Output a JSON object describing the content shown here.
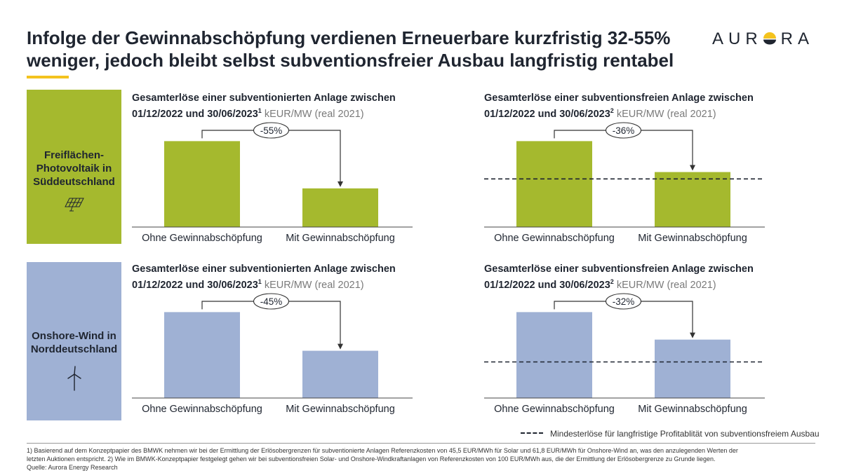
{
  "title": {
    "line1": "Infolge der Gewinnabschöpfung verdienen Erneuerbare kurzfristig 32-55%",
    "line2": "weniger, jedoch bleibt selbst subventionsfreier Ausbau langfristig rentabel"
  },
  "logo": {
    "left": "AUR",
    "right": "RA"
  },
  "rows": [
    {
      "label_lines": [
        "Freiflächen-",
        "Photovoltaik in",
        "Süddeutschland"
      ],
      "color": "#a5b92e",
      "icon": "solar-panel-icon"
    },
    {
      "label_lines": [
        "Onshore-Wind in",
        "Norddeutschland"
      ],
      "color": "#9fb1d4",
      "icon": "wind-turbine-icon"
    }
  ],
  "chart_data": [
    {
      "type": "bar",
      "title_line1": "Gesamterlöse einer subventionierten Anlage zwischen",
      "title_line2": "01/12/2022 und 30/06/2023",
      "footnote_mark": "1",
      "unit": "kEUR/MW (real 2021)",
      "categories": [
        "Ohne Gewinnabschöpfung",
        "Mit Gewinnabschöpfung"
      ],
      "values": [
        100,
        45
      ],
      "change_label": "-55%",
      "color": "#a5b92e",
      "ylim": [
        0,
        115
      ]
    },
    {
      "type": "bar",
      "title_line1": "Gesamterlöse einer subventionsfreien Anlage zwischen",
      "title_line2": "01/12/2022 und 30/06/2023",
      "footnote_mark": "2",
      "unit": "kEUR/MW (real 2021)",
      "categories": [
        "Ohne Gewinnabschöpfung",
        "Mit Gewinnabschöpfung"
      ],
      "values": [
        100,
        64
      ],
      "change_label": "-36%",
      "color": "#a5b92e",
      "threshold": 56,
      "ylim": [
        0,
        115
      ]
    },
    {
      "type": "bar",
      "title_line1": "Gesamterlöse einer subventionierten Anlage zwischen",
      "title_line2": "01/12/2022 und 30/06/2023",
      "footnote_mark": "1",
      "unit": "kEUR/MW (real 2021)",
      "categories": [
        "Ohne Gewinnabschöpfung",
        "Mit Gewinnabschöpfung"
      ],
      "values": [
        100,
        55
      ],
      "change_label": "-45%",
      "color": "#9fb1d4",
      "ylim": [
        0,
        115
      ]
    },
    {
      "type": "bar",
      "title_line1": "Gesamterlöse einer subventionsfreien Anlage zwischen",
      "title_line2": "01/12/2022 und 30/06/2023",
      "footnote_mark": "2",
      "unit": "kEUR/MW (real 2021)",
      "categories": [
        "Ohne Gewinnabschöpfung",
        "Mit Gewinnabschöpfung"
      ],
      "values": [
        100,
        68
      ],
      "change_label": "-32%",
      "color": "#9fb1d4",
      "threshold": 42,
      "ylim": [
        0,
        115
      ]
    }
  ],
  "legend": {
    "label": "Mindesterlöse für langfristige Profitablität von subventionsfreiem Ausbau"
  },
  "footnotes": {
    "line1": "1) Basierend auf dem Konzeptpapier des BMWK nehmen wir bei der Ermittlung der Erlösobergrenzen für subventionierte Anlagen Referenzkosten von 45,5 EUR/MWh für Solar und 61,8 EUR/MWh für Onshore-Wind an, was den anzulegenden Werten der",
    "line2": "letzten Auktionen entspricht. 2) Wie im BMWK-Konzeptpapier festgelegt gehen wir bei subventionsfreien Solar- und Onshore-Windkraftanlagen von Referenzkosten von 100 EUR/MWh aus, die der Ermittlung der Erlösobergrenze zu Grunde liegen.",
    "line3": "Quelle: Aurora Energy Research"
  }
}
